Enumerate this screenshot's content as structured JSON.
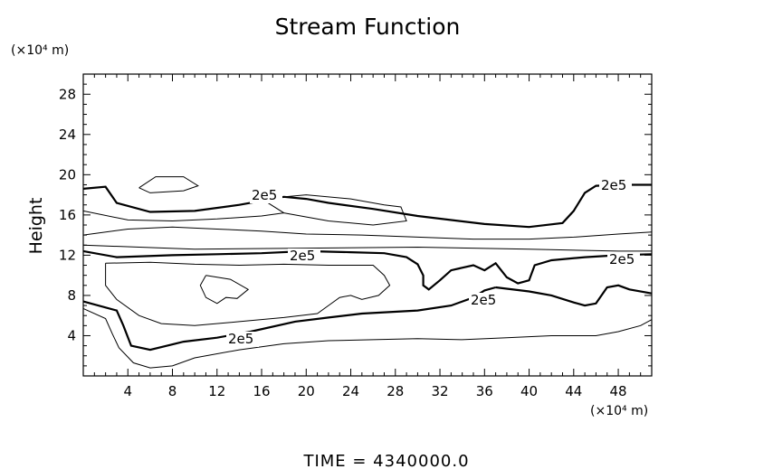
{
  "chart_data": {
    "type": "contour",
    "title": "Stream Function",
    "ylabel": "Height",
    "y_unit_label": "(×10⁴ m)",
    "x_unit_label": "(×10⁴ m)",
    "footer": "TIME  =  4340000.0",
    "xlim": [
      0,
      51
    ],
    "ylim": [
      0,
      30
    ],
    "x_ticks": [
      "4",
      "8",
      "12",
      "16",
      "20",
      "24",
      "28",
      "32",
      "36",
      "40",
      "44",
      "48"
    ],
    "y_ticks": [
      "4",
      "8",
      "12",
      "16",
      "20",
      "24",
      "28"
    ],
    "x_tick_values": [
      4,
      8,
      12,
      16,
      20,
      24,
      28,
      32,
      36,
      40,
      44,
      48
    ],
    "y_tick_values": [
      4,
      8,
      12,
      16,
      20,
      24,
      28
    ],
    "contour_label": "2e5",
    "series": [
      {
        "kind": "thick",
        "points": [
          [
            0,
            18.6
          ],
          [
            2,
            18.8
          ],
          [
            3,
            17.2
          ],
          [
            6,
            16.3
          ],
          [
            10,
            16.4
          ],
          [
            14,
            17.0
          ],
          [
            18,
            17.8
          ],
          [
            20,
            17.6
          ],
          [
            22,
            17.2
          ],
          [
            26,
            16.6
          ],
          [
            30,
            15.9
          ],
          [
            36,
            15.1
          ],
          [
            40,
            14.8
          ],
          [
            43,
            15.2
          ],
          [
            44,
            16.4
          ],
          [
            45,
            18.2
          ],
          [
            46,
            18.9
          ],
          [
            48,
            19.0
          ],
          [
            51,
            19.0
          ]
        ]
      },
      {
        "kind": "thick",
        "points": [
          [
            0,
            12.4
          ],
          [
            3,
            11.8
          ],
          [
            8,
            12.0
          ],
          [
            12,
            12.1
          ],
          [
            16,
            12.2
          ],
          [
            20,
            12.4
          ],
          [
            24,
            12.3
          ],
          [
            27,
            12.2
          ],
          [
            29,
            11.8
          ],
          [
            30,
            11.1
          ],
          [
            30.5,
            10.0
          ],
          [
            30.5,
            9.0
          ],
          [
            31,
            8.6
          ],
          [
            32,
            9.5
          ],
          [
            33,
            10.5
          ],
          [
            35,
            11.0
          ],
          [
            36,
            10.5
          ],
          [
            37,
            11.2
          ],
          [
            38,
            9.8
          ],
          [
            39,
            9.2
          ],
          [
            40,
            9.5
          ],
          [
            40.5,
            11.0
          ],
          [
            42,
            11.5
          ],
          [
            45,
            11.8
          ],
          [
            48,
            12.0
          ],
          [
            51,
            12.1
          ]
        ]
      },
      {
        "kind": "thick",
        "points": [
          [
            37,
            8.8
          ],
          [
            40,
            8.4
          ],
          [
            42,
            8.0
          ],
          [
            44,
            7.3
          ],
          [
            45,
            7.0
          ],
          [
            46,
            7.2
          ],
          [
            47,
            8.8
          ],
          [
            48,
            9.0
          ],
          [
            49,
            8.6
          ],
          [
            51,
            8.2
          ]
        ]
      },
      {
        "kind": "thick",
        "points": [
          [
            0,
            7.4
          ],
          [
            3,
            6.5
          ],
          [
            3.6,
            5.0
          ],
          [
            4.3,
            3.0
          ],
          [
            6,
            2.6
          ],
          [
            9,
            3.4
          ],
          [
            12,
            3.8
          ],
          [
            15,
            4.4
          ],
          [
            19,
            5.4
          ],
          [
            22,
            5.8
          ],
          [
            25,
            6.2
          ],
          [
            30,
            6.5
          ],
          [
            33,
            7.0
          ],
          [
            35,
            7.8
          ],
          [
            36,
            8.5
          ],
          [
            37,
            8.8
          ]
        ]
      },
      {
        "kind": "thin",
        "points": [
          [
            0,
            14.0
          ],
          [
            4,
            14.6
          ],
          [
            8,
            14.8
          ],
          [
            12,
            14.6
          ],
          [
            16,
            14.4
          ],
          [
            20,
            14.1
          ],
          [
            25,
            14.0
          ],
          [
            30,
            13.8
          ],
          [
            35,
            13.6
          ],
          [
            40,
            13.6
          ],
          [
            44,
            13.8
          ],
          [
            48,
            14.1
          ],
          [
            51,
            14.3
          ]
        ]
      },
      {
        "kind": "thin",
        "points": [
          [
            0,
            13.0
          ],
          [
            10,
            12.6
          ],
          [
            20,
            12.7
          ],
          [
            30,
            12.8
          ],
          [
            40,
            12.6
          ],
          [
            48,
            12.4
          ],
          [
            51,
            12.4
          ]
        ]
      },
      {
        "kind": "thin",
        "points": [
          [
            2,
            11.2
          ],
          [
            6,
            11.3
          ],
          [
            10,
            11.1
          ],
          [
            14,
            11.0
          ],
          [
            18,
            11.1
          ],
          [
            22,
            11.0
          ],
          [
            26,
            11.0
          ],
          [
            27,
            10.0
          ],
          [
            27.5,
            9.0
          ],
          [
            26.5,
            8.0
          ],
          [
            25,
            7.6
          ],
          [
            24,
            8.0
          ],
          [
            23,
            7.8
          ],
          [
            22,
            7.0
          ],
          [
            21,
            6.2
          ],
          [
            18,
            5.8
          ],
          [
            14,
            5.4
          ],
          [
            10,
            5.0
          ],
          [
            7,
            5.2
          ],
          [
            5,
            6.0
          ],
          [
            3,
            7.6
          ],
          [
            2,
            9.0
          ],
          [
            2,
            11.2
          ]
        ]
      },
      {
        "kind": "thin",
        "points": [
          [
            11,
            10.0
          ],
          [
            13.2,
            9.6
          ],
          [
            14.8,
            8.6
          ],
          [
            13.8,
            7.7
          ],
          [
            12.8,
            7.8
          ],
          [
            12,
            7.2
          ],
          [
            11,
            7.8
          ],
          [
            10.5,
            9.0
          ],
          [
            11,
            10.0
          ]
        ]
      },
      {
        "kind": "thin",
        "points": [
          [
            0,
            6.7
          ],
          [
            2,
            5.7
          ],
          [
            2.6,
            4.2
          ],
          [
            3.2,
            2.8
          ],
          [
            4.5,
            1.3
          ],
          [
            6,
            0.8
          ],
          [
            8,
            1.0
          ],
          [
            10,
            1.8
          ],
          [
            14,
            2.6
          ],
          [
            18,
            3.2
          ],
          [
            22,
            3.5
          ],
          [
            26,
            3.6
          ],
          [
            30,
            3.7
          ],
          [
            34,
            3.6
          ],
          [
            38,
            3.8
          ],
          [
            42,
            4.0
          ],
          [
            46,
            4.0
          ],
          [
            48,
            4.4
          ],
          [
            50,
            5.0
          ],
          [
            51,
            5.6
          ]
        ]
      },
      {
        "kind": "thin",
        "points": [
          [
            5,
            18.7
          ],
          [
            6.5,
            19.8
          ],
          [
            9,
            19.8
          ],
          [
            10.3,
            18.9
          ],
          [
            9,
            18.4
          ],
          [
            6,
            18.2
          ],
          [
            5,
            18.7
          ]
        ]
      },
      {
        "kind": "thin",
        "points": [
          [
            16,
            17.6
          ],
          [
            20,
            18.0
          ],
          [
            24,
            17.6
          ],
          [
            27,
            17.0
          ],
          [
            28.5,
            16.8
          ],
          [
            29,
            15.4
          ],
          [
            26,
            15.0
          ],
          [
            22,
            15.4
          ],
          [
            18,
            16.2
          ],
          [
            16,
            17.6
          ]
        ]
      },
      {
        "kind": "thin",
        "points": [
          [
            0,
            16.4
          ],
          [
            4,
            15.5
          ],
          [
            8,
            15.4
          ],
          [
            12,
            15.6
          ],
          [
            16,
            15.9
          ],
          [
            18,
            16.2
          ]
        ]
      }
    ]
  }
}
